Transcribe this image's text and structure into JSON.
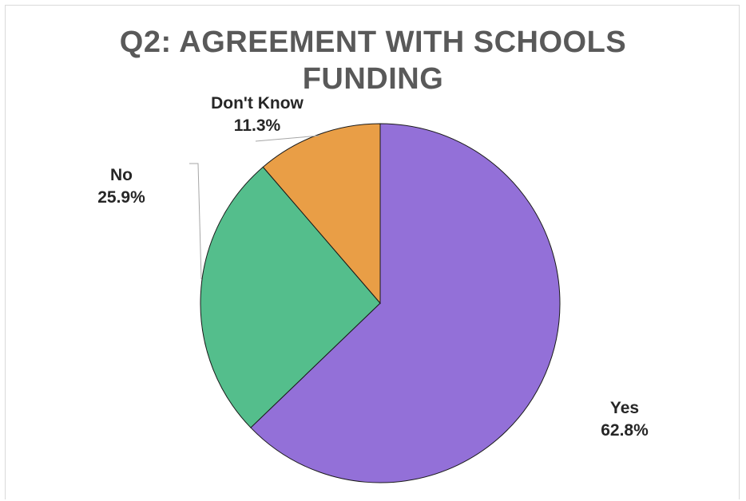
{
  "chart_data": {
    "type": "pie",
    "title_lines": [
      "Q2: AGREEMENT WITH SCHOOLS",
      "FUNDING"
    ],
    "title": "Q2: AGREEMENT WITH SCHOOLS FUNDING",
    "start_angle_deg": 0,
    "direction": "clockwise",
    "slices": [
      {
        "label": "Yes",
        "value": 62.8,
        "display": "62.8%",
        "color": "#9370D8"
      },
      {
        "label": "No",
        "value": 25.9,
        "display": "25.9%",
        "color": "#54BE8C"
      },
      {
        "label": "Don't Know",
        "value": 11.3,
        "display": "11.3%",
        "color": "#E99E46"
      }
    ],
    "legend": "none",
    "label_style": "category and percentage outside with leader lines"
  }
}
